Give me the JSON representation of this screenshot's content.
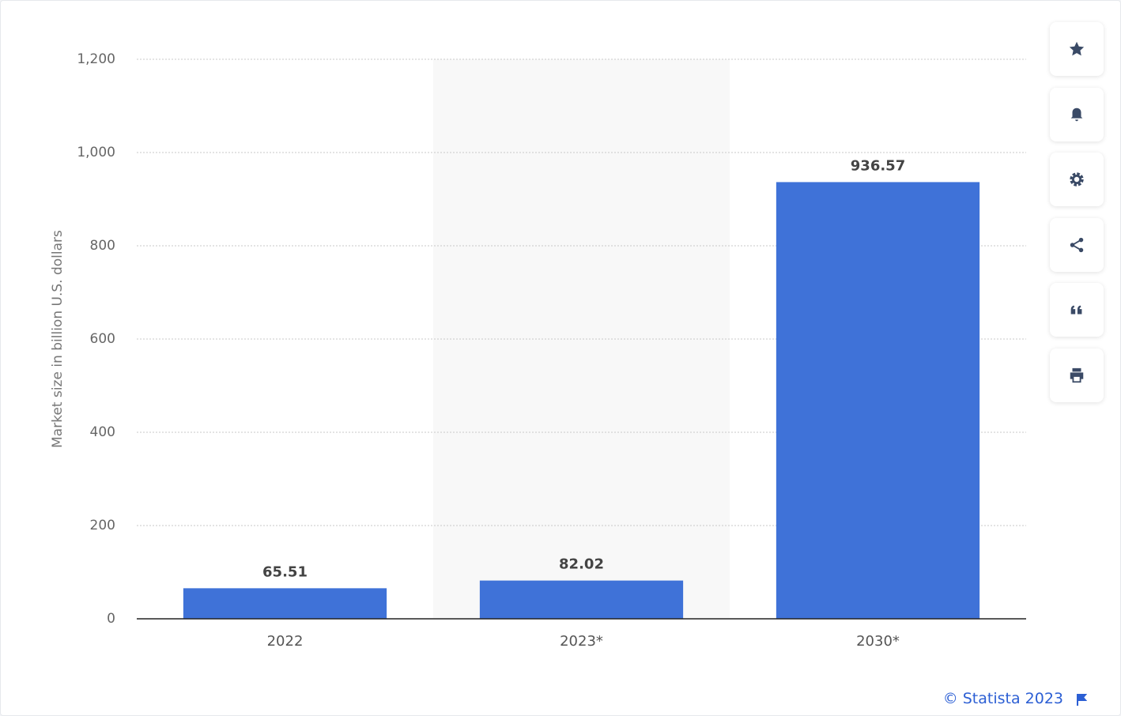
{
  "chart_data": {
    "type": "bar",
    "y_label": "Market size in billion U.S. dollars",
    "categories": [
      "2022",
      "2023*",
      "2030*"
    ],
    "values": [
      65.51,
      82.02,
      936.57
    ],
    "color": "#3f72d8",
    "ylim": [
      0,
      1200
    ],
    "yticks": [
      0,
      200,
      400,
      600,
      800,
      {
        "value": 1000,
        "label": "1,000"
      },
      {
        "value": 1200,
        "label": "1,200"
      }
    ],
    "grid": true,
    "credit": "© Statista 2023"
  }
}
